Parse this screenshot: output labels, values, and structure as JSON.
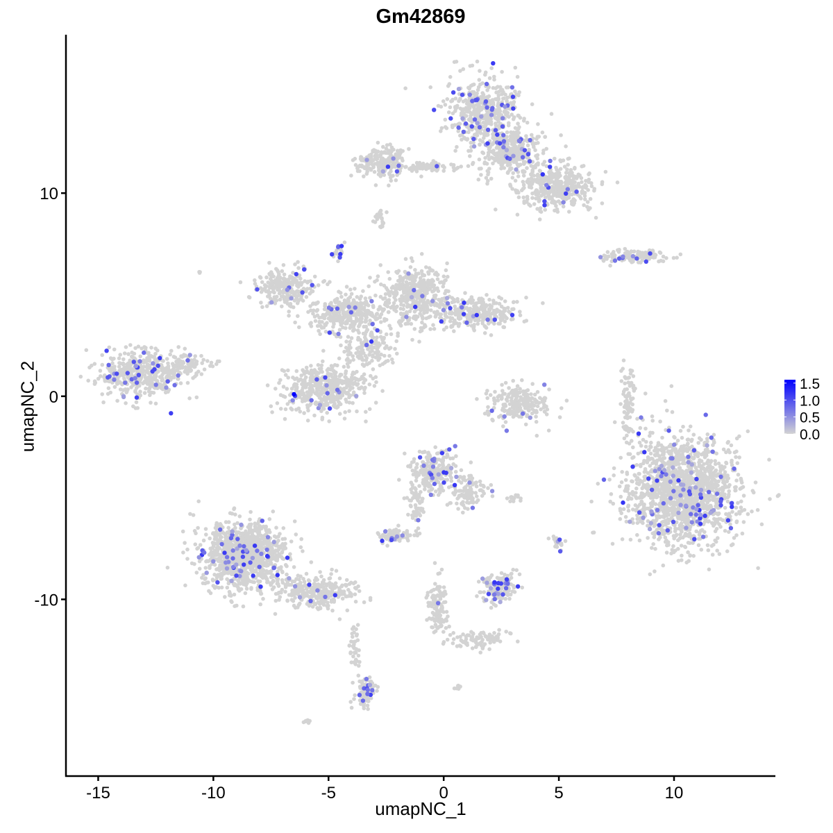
{
  "chart_data": {
    "type": "scatter",
    "title": "Gm42869",
    "xlabel": "umapNC_1",
    "ylabel": "umapNC_2",
    "xlim": [
      -16.4,
      14.4
    ],
    "ylim": [
      -18.7,
      17.8
    ],
    "xticks": [
      "-15",
      "-10",
      "-5",
      "0",
      "5",
      "10"
    ],
    "xtick_values": [
      -15,
      -10,
      -5,
      0,
      5,
      10
    ],
    "yticks": [
      "-10",
      "0",
      "10"
    ],
    "ytick_values": [
      -10,
      0,
      10
    ],
    "grid": false,
    "legend": {
      "placement": "right",
      "type": "colorbar",
      "labels": [
        "1.5",
        "1.0",
        "0.5",
        "0.0"
      ],
      "values": [
        1.5,
        1.0,
        0.5,
        0.0
      ],
      "range": [
        0,
        1.6
      ],
      "low_color": "#d3d3d3",
      "high_color": "#0000ff"
    },
    "clusters": [
      {
        "x": 1.8,
        "y": 14.0,
        "sx": 1.1,
        "sy": 1.1,
        "n": 500,
        "expr": 0.08
      },
      {
        "x": 3.0,
        "y": 12.0,
        "sx": 0.9,
        "sy": 0.8,
        "n": 350,
        "expr": 0.05
      },
      {
        "x": 4.9,
        "y": 10.3,
        "sx": 1.1,
        "sy": 0.7,
        "n": 400,
        "expr": 0.04
      },
      {
        "x": -2.7,
        "y": 11.5,
        "sx": 0.8,
        "sy": 0.5,
        "n": 200,
        "expr": 0.04
      },
      {
        "x": -0.6,
        "y": 11.3,
        "sx": 0.9,
        "sy": 0.15,
        "n": 80,
        "expr": 0.02
      },
      {
        "x": -2.8,
        "y": 8.8,
        "sx": 0.15,
        "sy": 0.3,
        "n": 25,
        "expr": 0.05
      },
      {
        "x": -4.6,
        "y": 7.3,
        "sx": 0.2,
        "sy": 0.3,
        "n": 20,
        "expr": 0.4
      },
      {
        "x": 8.2,
        "y": 6.9,
        "sx": 1.0,
        "sy": 0.2,
        "n": 120,
        "expr": 0.08
      },
      {
        "x": -6.9,
        "y": 5.4,
        "sx": 0.8,
        "sy": 0.6,
        "n": 250,
        "expr": 0.04
      },
      {
        "x": -4.2,
        "y": 4.1,
        "sx": 1.2,
        "sy": 0.6,
        "n": 350,
        "expr": 0.02
      },
      {
        "x": -1.2,
        "y": 5.0,
        "sx": 0.9,
        "sy": 0.9,
        "n": 450,
        "expr": 0.02
      },
      {
        "x": 1.5,
        "y": 4.1,
        "sx": 1.1,
        "sy": 0.45,
        "n": 300,
        "expr": 0.05
      },
      {
        "x": -3.3,
        "y": 2.4,
        "sx": 0.7,
        "sy": 0.7,
        "n": 150,
        "expr": 0.02
      },
      {
        "x": -5.1,
        "y": 0.4,
        "sx": 1.2,
        "sy": 0.8,
        "n": 450,
        "expr": 0.03
      },
      {
        "x": -13.2,
        "y": 1.1,
        "sx": 1.2,
        "sy": 0.8,
        "n": 450,
        "expr": 0.1
      },
      {
        "x": -11.3,
        "y": 1.5,
        "sx": 0.7,
        "sy": 0.4,
        "n": 100,
        "expr": 0.01
      },
      {
        "x": 3.3,
        "y": -0.4,
        "sx": 1.0,
        "sy": 0.6,
        "n": 220,
        "expr": 0.02
      },
      {
        "x": 8.0,
        "y": -0.3,
        "sx": 0.2,
        "sy": 1.1,
        "n": 80,
        "expr": 0.0
      },
      {
        "x": 10.4,
        "y": -4.6,
        "sx": 1.6,
        "sy": 1.8,
        "n": 1600,
        "expr": 0.05
      },
      {
        "x": -0.4,
        "y": -3.7,
        "sx": 0.7,
        "sy": 0.7,
        "n": 250,
        "expr": 0.08
      },
      {
        "x": 1.0,
        "y": -4.8,
        "sx": 0.6,
        "sy": 0.5,
        "n": 100,
        "expr": 0.05
      },
      {
        "x": -2.2,
        "y": -6.9,
        "sx": 0.5,
        "sy": 0.25,
        "n": 80,
        "expr": 0.1
      },
      {
        "x": -1.2,
        "y": -5.3,
        "sx": 0.25,
        "sy": 0.8,
        "n": 60,
        "expr": 0.02
      },
      {
        "x": -8.7,
        "y": -7.8,
        "sx": 1.2,
        "sy": 1.1,
        "n": 1100,
        "expr": 0.05
      },
      {
        "x": -5.6,
        "y": -9.6,
        "sx": 1.1,
        "sy": 0.5,
        "n": 300,
        "expr": 0.03
      },
      {
        "x": -3.4,
        "y": -14.6,
        "sx": 0.3,
        "sy": 0.5,
        "n": 90,
        "expr": 0.1
      },
      {
        "x": -3.9,
        "y": -12.3,
        "sx": 0.2,
        "sy": 0.7,
        "n": 40,
        "expr": 0.0
      },
      {
        "x": 2.4,
        "y": -9.4,
        "sx": 0.5,
        "sy": 0.5,
        "n": 150,
        "expr": 0.15
      },
      {
        "x": -0.3,
        "y": -10.5,
        "sx": 0.3,
        "sy": 1.0,
        "n": 120,
        "expr": 0.01
      },
      {
        "x": 1.5,
        "y": -12.0,
        "sx": 0.9,
        "sy": 0.3,
        "n": 90,
        "expr": 0.0
      },
      {
        "x": 4.9,
        "y": -7.3,
        "sx": 0.2,
        "sy": 0.3,
        "n": 25,
        "expr": 0.05
      },
      {
        "x": 3.1,
        "y": -5.0,
        "sx": 0.3,
        "sy": 0.1,
        "n": 15,
        "expr": 0.05
      },
      {
        "x": -6.0,
        "y": -16.0,
        "sx": 0.15,
        "sy": 0.1,
        "n": 10,
        "expr": 0.0
      },
      {
        "x": 0.6,
        "y": -14.3,
        "sx": 0.1,
        "sy": 0.1,
        "n": 6,
        "expr": 0.0
      },
      {
        "x": -10.6,
        "y": 6.1,
        "sx": 0.05,
        "sy": 0.05,
        "n": 3,
        "expr": 0.0
      }
    ],
    "highlight_points": [
      {
        "x": -6.5,
        "y": 0.1,
        "value": 1.6
      }
    ]
  }
}
